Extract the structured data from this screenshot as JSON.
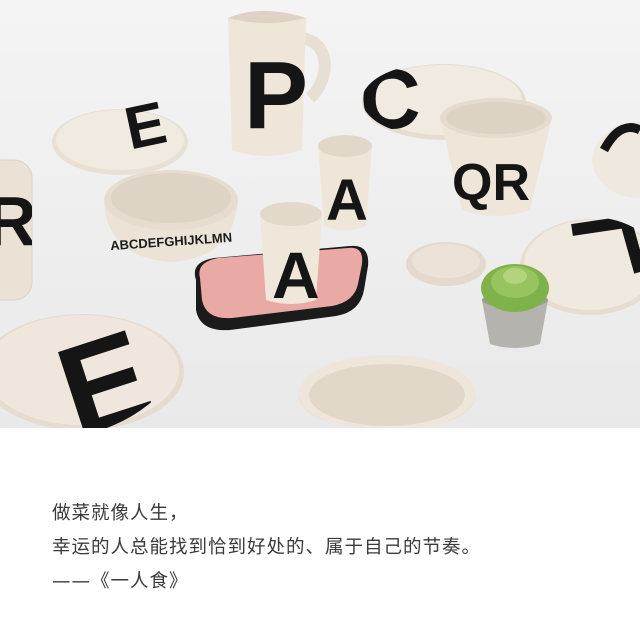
{
  "photo": {
    "background_color": "#f1f1f1",
    "ceramic_color": "#ece3d8",
    "letter_color": "#151515",
    "tray_pink": "#e9a9a5",
    "tray_black": "#1b1b1b",
    "plant_green": "#7fb24a",
    "pot_gray": "#b5b3ae",
    "letters": {
      "pitcher": "P",
      "cup_left": "A",
      "cup_right": "A",
      "plate_top_left": "E",
      "plate_bottom_left": "E",
      "plate_top_right": "C",
      "bowl_right": "QR",
      "plate_left_edge": "R",
      "bowl_rim_alphabet": "ABCDEFGHIJKLMN"
    }
  },
  "caption": {
    "line1": "做菜就像人生，",
    "line2": "幸运的人总能找到恰到好处的、属于自己的节奏。",
    "line3": "——《一人食》"
  }
}
